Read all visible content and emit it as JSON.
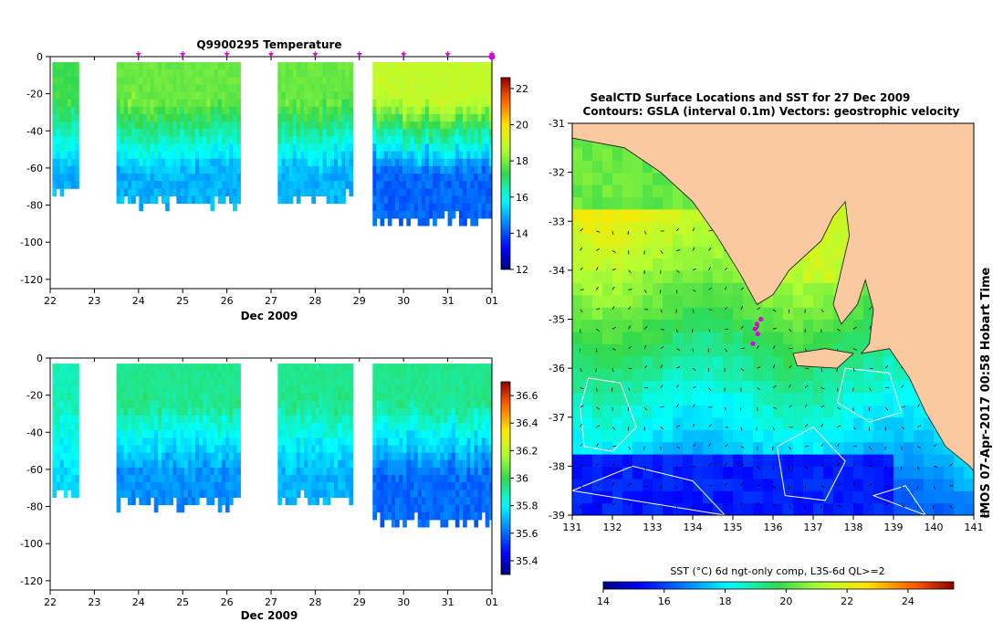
{
  "colors": {
    "land": "#f9c9a0",
    "accent_marker": "#dd00dd",
    "contour": "#ffffff",
    "coast": "#111111"
  },
  "chart_data": [
    {
      "type": "heatmap",
      "title": "Q9900295  Temperature",
      "xlabel": "Dec 2009",
      "ylabel": "",
      "x_tick_labels": [
        "22",
        "23",
        "24",
        "25",
        "26",
        "27",
        "28",
        "29",
        "30",
        "31",
        "01"
      ],
      "xlim": [
        22,
        32
      ],
      "y_tick_labels": [
        "0",
        "-20",
        "-40",
        "-60",
        "-80",
        "-100",
        "-120"
      ],
      "y_ticks": [
        0,
        -20,
        -40,
        -60,
        -80,
        -100,
        -120
      ],
      "ylim": [
        -125,
        0
      ],
      "profile_markers": [
        24,
        25,
        26,
        27,
        28,
        29,
        30,
        31,
        32
      ],
      "colorbar": {
        "ticks": [
          "12",
          "14",
          "16",
          "18",
          "20",
          "22"
        ],
        "tick_values": [
          12,
          14,
          16,
          18,
          20,
          22
        ],
        "range": [
          12,
          22.6
        ]
      },
      "profile_groups": [
        {
          "start": 22.05,
          "end": 22.6,
          "max_depth": 69,
          "surface": 17.5,
          "deep": 15.0
        },
        {
          "start": 23.5,
          "end": 26.3,
          "max_depth": 75,
          "surface": 18.0,
          "deep": 15.0
        },
        {
          "start": 27.15,
          "end": 28.8,
          "max_depth": 73,
          "surface": 18.0,
          "deep": 15.0
        },
        {
          "start": 29.3,
          "end": 32.0,
          "max_depth": 85,
          "surface": 19.0,
          "deep": 14.2
        }
      ]
    },
    {
      "type": "heatmap",
      "title": "",
      "xlabel": "Dec 2009",
      "ylabel": "",
      "x_tick_labels": [
        "22",
        "23",
        "24",
        "25",
        "26",
        "27",
        "28",
        "29",
        "30",
        "31",
        "01"
      ],
      "xlim": [
        22,
        32
      ],
      "y_tick_labels": [
        "0",
        "-20",
        "-40",
        "-60",
        "-80",
        "-100",
        "-120"
      ],
      "y_ticks": [
        0,
        -20,
        -40,
        -60,
        -80,
        -100,
        -120
      ],
      "ylim": [
        -125,
        0
      ],
      "colorbar": {
        "ticks": [
          "35.4",
          "35.6",
          "35.8",
          "36",
          "36.2",
          "36.4",
          "36.6"
        ],
        "tick_values": [
          35.4,
          35.6,
          35.8,
          36.0,
          36.2,
          36.4,
          36.6
        ],
        "range": [
          35.3,
          36.7
        ]
      },
      "profile_groups": [
        {
          "start": 22.05,
          "end": 22.6,
          "max_depth": 69,
          "surface": 35.9,
          "deep": 35.75
        },
        {
          "start": 23.5,
          "end": 26.3,
          "max_depth": 75,
          "surface": 35.95,
          "deep": 35.65
        },
        {
          "start": 27.15,
          "end": 28.8,
          "max_depth": 73,
          "surface": 35.95,
          "deep": 35.7
        },
        {
          "start": 29.3,
          "end": 32.0,
          "max_depth": 85,
          "surface": 35.95,
          "deep": 35.6
        }
      ]
    },
    {
      "type": "heatmap",
      "title_line1": "SealCTD Surface Locations and SST for 27 Dec 2009",
      "title_line2": "Contours: GSLA (interval 0.1m)  Vectors: geostrophic velocity",
      "x_tick_labels": [
        "131",
        "132",
        "133",
        "134",
        "135",
        "136",
        "137",
        "138",
        "139",
        "140",
        "141"
      ],
      "xlim": [
        131,
        141
      ],
      "y_tick_labels": [
        "-31",
        "-32",
        "-33",
        "-34",
        "-35",
        "-36",
        "-37",
        "-38",
        "-39"
      ],
      "ylim": [
        -39,
        -31
      ],
      "side_label": "IMOS 07-Apr-2017 00:58 Hobart Time",
      "copyright": "©",
      "colorbar": {
        "label": "SST (°C) 6d ngt-only comp, L3S-6d QL>=2",
        "ticks": [
          "14",
          "16",
          "18",
          "20",
          "22",
          "24"
        ],
        "tick_values": [
          14,
          16,
          18,
          20,
          22,
          24
        ],
        "range": [
          14,
          25.5
        ]
      },
      "seal_track": [
        [
          135.55,
          -35.2
        ],
        [
          135.6,
          -35.1
        ],
        [
          135.7,
          -35.0
        ],
        [
          135.62,
          -35.3
        ],
        [
          135.5,
          -35.5
        ]
      ]
    }
  ]
}
